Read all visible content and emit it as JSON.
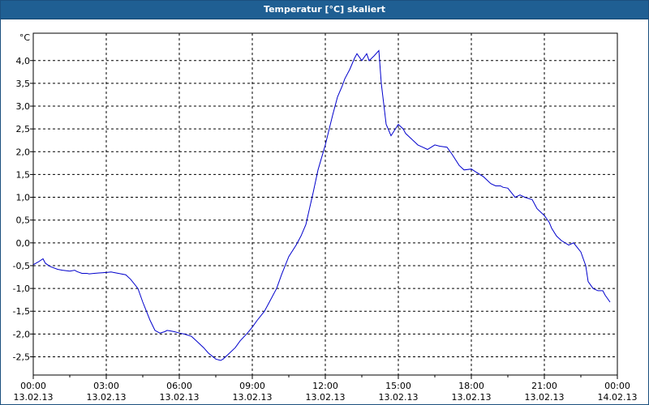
{
  "window": {
    "title": "Temperatur [°C] skaliert"
  },
  "chart_data": {
    "type": "line",
    "title": "Temperatur [°C] skaliert",
    "ylabel": "°C",
    "xlabel": "",
    "ylim": [
      -2.9,
      4.6
    ],
    "xlim": [
      0,
      24
    ],
    "grid": true,
    "line_color": "#0000cc",
    "y_ticks": [
      "4,0",
      "3,5",
      "3,0",
      "2,5",
      "2,0",
      "1,5",
      "1,0",
      "0,5",
      "0,0",
      "-0,5",
      "-1,0",
      "-1,5",
      "-2,0",
      "-2,5"
    ],
    "x_ticks": [
      {
        "time": "00:00",
        "date": "13.02.13"
      },
      {
        "time": "03:00",
        "date": "13.02.13"
      },
      {
        "time": "06:00",
        "date": "13.02.13"
      },
      {
        "time": "09:00",
        "date": "13.02.13"
      },
      {
        "time": "12:00",
        "date": "13.02.13"
      },
      {
        "time": "15:00",
        "date": "13.02.13"
      },
      {
        "time": "18:00",
        "date": "13.02.13"
      },
      {
        "time": "21:00",
        "date": "13.02.13"
      },
      {
        "time": "00:00",
        "date": "14.02.13"
      }
    ],
    "series": [
      {
        "x": [
          0.0,
          0.2,
          0.4,
          0.5,
          0.7,
          1.0,
          1.2,
          1.5,
          1.7,
          1.8,
          2.0,
          2.2,
          2.3,
          2.5,
          2.7,
          3.0,
          3.2,
          3.3,
          3.5,
          3.8,
          4.0,
          4.3,
          4.5,
          4.8,
          5.0,
          5.2,
          5.4,
          5.5,
          5.6,
          5.8,
          6.0,
          6.2,
          6.5,
          6.7,
          7.0,
          7.2,
          7.5,
          7.7,
          7.8,
          8.0,
          8.3,
          8.5,
          8.8,
          9.0,
          9.2,
          9.5,
          9.7,
          10.0,
          10.2,
          10.5,
          10.8,
          11.0,
          11.2,
          11.5,
          11.7,
          12.0,
          12.3,
          12.5,
          12.7,
          12.8,
          13.0,
          13.2,
          13.3,
          13.5,
          13.7,
          13.8,
          14.0,
          14.2,
          14.3,
          14.5,
          14.7,
          15.0,
          15.2,
          15.3,
          15.5,
          15.7,
          15.8,
          16.0,
          16.2,
          16.5,
          16.7,
          17.0,
          17.2,
          17.5,
          17.7,
          18.0,
          18.2,
          18.5,
          18.8,
          19.0,
          19.2,
          19.3,
          19.5,
          19.8,
          20.0,
          20.2,
          20.5,
          20.7,
          21.0,
          21.2,
          21.3,
          21.5,
          21.7,
          22.0,
          22.2,
          22.5,
          22.7,
          22.8,
          23.0,
          23.2,
          23.4,
          23.5,
          23.7
        ],
        "y": [
          -0.48,
          -0.42,
          -0.35,
          -0.45,
          -0.52,
          -0.58,
          -0.6,
          -0.62,
          -0.6,
          -0.63,
          -0.67,
          -0.67,
          -0.68,
          -0.67,
          -0.66,
          -0.65,
          -0.64,
          -0.65,
          -0.67,
          -0.7,
          -0.8,
          -1.0,
          -1.3,
          -1.7,
          -1.92,
          -1.98,
          -1.95,
          -1.92,
          -1.93,
          -1.95,
          -1.98,
          -2.0,
          -2.05,
          -2.15,
          -2.3,
          -2.42,
          -2.55,
          -2.58,
          -2.55,
          -2.45,
          -2.3,
          -2.15,
          -1.98,
          -1.85,
          -1.7,
          -1.5,
          -1.3,
          -1.0,
          -0.7,
          -0.3,
          -0.05,
          0.15,
          0.4,
          1.1,
          1.6,
          2.15,
          2.8,
          3.2,
          3.45,
          3.6,
          3.8,
          4.05,
          4.15,
          4.0,
          4.15,
          4.0,
          4.1,
          4.22,
          3.5,
          2.6,
          2.35,
          2.6,
          2.5,
          2.4,
          2.3,
          2.2,
          2.15,
          2.1,
          2.05,
          2.15,
          2.12,
          2.1,
          1.95,
          1.7,
          1.6,
          1.62,
          1.55,
          1.45,
          1.3,
          1.25,
          1.25,
          1.22,
          1.2,
          1.0,
          1.05,
          1.0,
          0.95,
          0.75,
          0.6,
          0.45,
          0.32,
          0.15,
          0.05,
          -0.05,
          0.0,
          -0.2,
          -0.5,
          -0.85,
          -1.0,
          -1.05,
          -1.05,
          -1.15,
          -1.3
        ]
      }
    ]
  }
}
